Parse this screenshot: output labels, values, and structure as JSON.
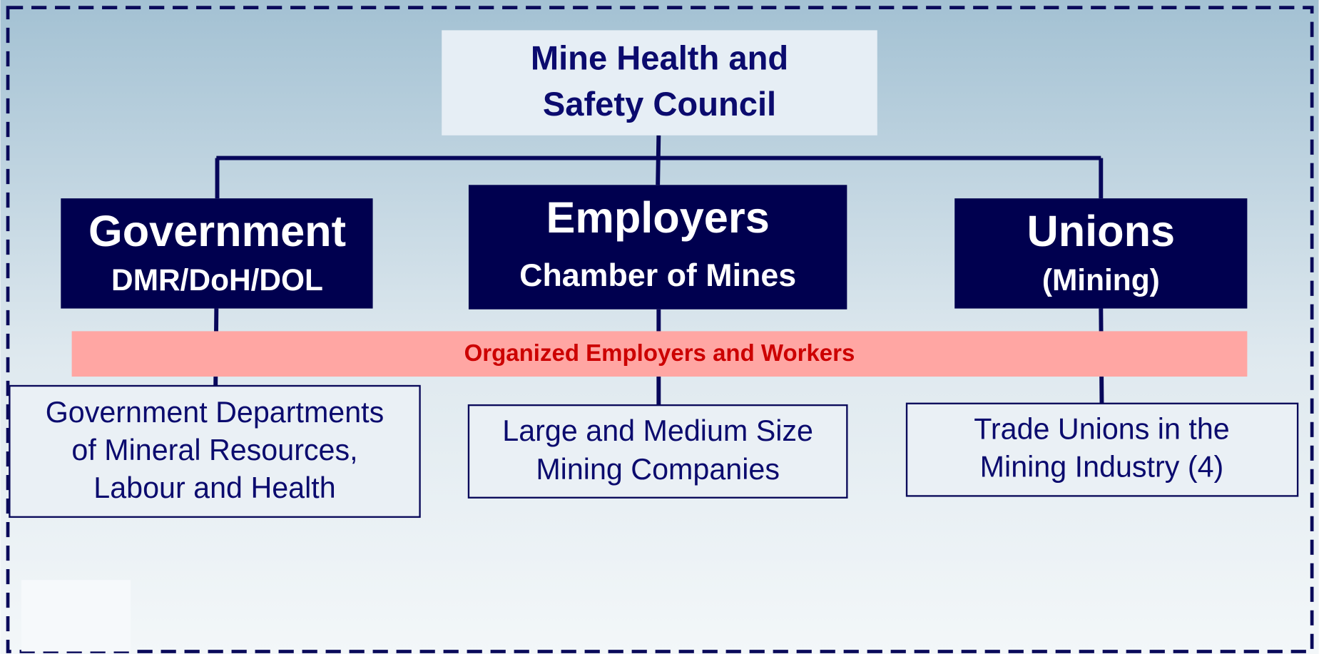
{
  "council": {
    "lines": [
      "Mine Health and",
      "Safety Council"
    ]
  },
  "groups": [
    {
      "title": "Government",
      "subtitle": "DMR/DoH/DOL",
      "description": [
        "Government Departments",
        "of Mineral Resources,",
        "Labour and Health"
      ]
    },
    {
      "title": "Employers",
      "subtitle": "Chamber of Mines",
      "description": [
        "Large and Medium Size",
        "Mining Companies"
      ]
    },
    {
      "title": "Unions",
      "subtitle": "(Mining)",
      "description": [
        "Trade Unions in the",
        "Mining Industry (4)"
      ]
    }
  ],
  "banner": "Organized Employers and Workers"
}
